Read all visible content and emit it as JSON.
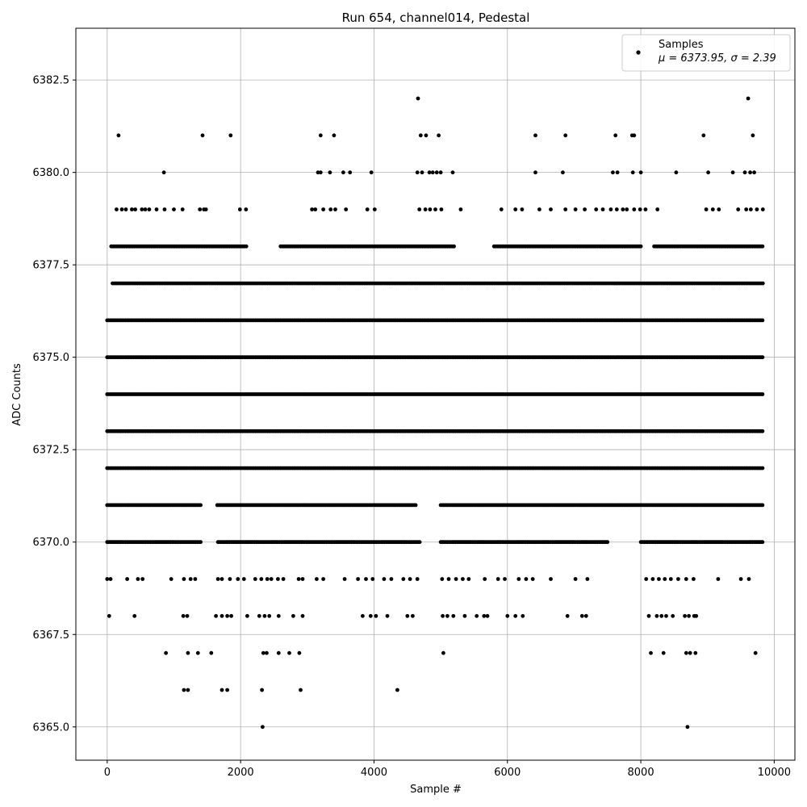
{
  "chart_data": {
    "type": "scatter",
    "title": "Run 654, channel014, Pedestal",
    "xlabel": "Sample #",
    "ylabel": "ADC Counts",
    "xlim": [
      -470,
      10310
    ],
    "ylim": [
      6364.1,
      6383.9
    ],
    "x_ticks": [
      0,
      2000,
      4000,
      6000,
      8000,
      10000
    ],
    "x_tick_labels": [
      "0",
      "2000",
      "4000",
      "6000",
      "8000",
      "10000"
    ],
    "y_ticks": [
      6365.0,
      6367.5,
      6370.0,
      6372.5,
      6375.0,
      6377.5,
      6380.0,
      6382.5
    ],
    "y_tick_labels": [
      "6365.0",
      "6367.5",
      "6370.0",
      "6372.5",
      "6375.0",
      "6377.5",
      "6380.0",
      "6382.5"
    ],
    "grid": true,
    "legend_position": "top-right",
    "series": [
      {
        "name": "Samples",
        "stats_label": "μ = 6373.95, σ = 2.39",
        "color": "#000000",
        "n_samples": 9850,
        "level_ranges": {
          "6373": [
            [
              0,
              9840
            ]
          ],
          "6374": [
            [
              0,
              9840
            ]
          ],
          "6375": [
            [
              0,
              9840
            ]
          ],
          "6376": [
            [
              0,
              9840
            ]
          ],
          "6372": [
            [
              0,
              9840
            ]
          ],
          "6377": [
            [
              80,
              9840
            ]
          ],
          "6371": [
            [
              0,
              1420
            ],
            [
              1650,
              4640
            ],
            [
              5000,
              9840
            ]
          ],
          "6370": [
            [
              0,
              1420
            ],
            [
              1660,
              4700
            ],
            [
              5000,
              7500
            ],
            [
              8000,
              9840
            ]
          ],
          "6378": [
            [
              60,
              2100
            ],
            [
              2600,
              5200
            ],
            [
              5800,
              8000
            ],
            [
              8200,
              9840
            ]
          ]
        },
        "points": [
          [
            170,
            6381
          ],
          [
            1430,
            6381
          ],
          [
            1850,
            6381
          ],
          [
            3200,
            6381
          ],
          [
            3400,
            6381
          ],
          [
            4700,
            6381
          ],
          [
            4780,
            6381
          ],
          [
            4970,
            6381
          ],
          [
            6420,
            6381
          ],
          [
            6870,
            6381
          ],
          [
            7620,
            6381
          ],
          [
            7870,
            6381
          ],
          [
            7900,
            6381
          ],
          [
            8940,
            6381
          ],
          [
            9680,
            6381
          ],
          [
            4660,
            6382
          ],
          [
            9610,
            6382
          ],
          [
            850,
            6380
          ],
          [
            3160,
            6380
          ],
          [
            3200,
            6380
          ],
          [
            3340,
            6380
          ],
          [
            3540,
            6380
          ],
          [
            3640,
            6380
          ],
          [
            3960,
            6380
          ],
          [
            4650,
            6380
          ],
          [
            4720,
            6380
          ],
          [
            4830,
            6380
          ],
          [
            4880,
            6380
          ],
          [
            4940,
            6380
          ],
          [
            5000,
            6380
          ],
          [
            5180,
            6380
          ],
          [
            6420,
            6380
          ],
          [
            6830,
            6380
          ],
          [
            7580,
            6380
          ],
          [
            7650,
            6380
          ],
          [
            7880,
            6380
          ],
          [
            8000,
            6380
          ],
          [
            8530,
            6380
          ],
          [
            9010,
            6380
          ],
          [
            9380,
            6380
          ],
          [
            9560,
            6380
          ],
          [
            9640,
            6380
          ],
          [
            9700,
            6380
          ],
          [
            140,
            6379
          ],
          [
            220,
            6379
          ],
          [
            280,
            6379
          ],
          [
            370,
            6379
          ],
          [
            420,
            6379
          ],
          [
            520,
            6379
          ],
          [
            570,
            6379
          ],
          [
            630,
            6379
          ],
          [
            740,
            6379
          ],
          [
            860,
            6379
          ],
          [
            1000,
            6379
          ],
          [
            1130,
            6379
          ],
          [
            1390,
            6379
          ],
          [
            1450,
            6379
          ],
          [
            1480,
            6379
          ],
          [
            1990,
            6379
          ],
          [
            2080,
            6379
          ],
          [
            3070,
            6379
          ],
          [
            3120,
            6379
          ],
          [
            3240,
            6379
          ],
          [
            3350,
            6379
          ],
          [
            3420,
            6379
          ],
          [
            3580,
            6379
          ],
          [
            3900,
            6379
          ],
          [
            4010,
            6379
          ],
          [
            4680,
            6379
          ],
          [
            4770,
            6379
          ],
          [
            4840,
            6379
          ],
          [
            4920,
            6379
          ],
          [
            5010,
            6379
          ],
          [
            5300,
            6379
          ],
          [
            5910,
            6379
          ],
          [
            6120,
            6379
          ],
          [
            6220,
            6379
          ],
          [
            6480,
            6379
          ],
          [
            6650,
            6379
          ],
          [
            6870,
            6379
          ],
          [
            7020,
            6379
          ],
          [
            7160,
            6379
          ],
          [
            7330,
            6379
          ],
          [
            7430,
            6379
          ],
          [
            7550,
            6379
          ],
          [
            7640,
            6379
          ],
          [
            7730,
            6379
          ],
          [
            7790,
            6379
          ],
          [
            7900,
            6379
          ],
          [
            7990,
            6379
          ],
          [
            8070,
            6379
          ],
          [
            8250,
            6379
          ],
          [
            8980,
            6379
          ],
          [
            9080,
            6379
          ],
          [
            9170,
            6379
          ],
          [
            9460,
            6379
          ],
          [
            9580,
            6379
          ],
          [
            9650,
            6379
          ],
          [
            9740,
            6379
          ],
          [
            9830,
            6379
          ],
          [
            0,
            6369
          ],
          [
            50,
            6369
          ],
          [
            300,
            6369
          ],
          [
            460,
            6369
          ],
          [
            530,
            6369
          ],
          [
            960,
            6369
          ],
          [
            1150,
            6369
          ],
          [
            1250,
            6369
          ],
          [
            1320,
            6369
          ],
          [
            1660,
            6369
          ],
          [
            1720,
            6369
          ],
          [
            1840,
            6369
          ],
          [
            1960,
            6369
          ],
          [
            2050,
            6369
          ],
          [
            2220,
            6369
          ],
          [
            2310,
            6369
          ],
          [
            2400,
            6369
          ],
          [
            2460,
            6369
          ],
          [
            2560,
            6369
          ],
          [
            2640,
            6369
          ],
          [
            2870,
            6369
          ],
          [
            2930,
            6369
          ],
          [
            3140,
            6369
          ],
          [
            3240,
            6369
          ],
          [
            3560,
            6369
          ],
          [
            3760,
            6369
          ],
          [
            3880,
            6369
          ],
          [
            3980,
            6369
          ],
          [
            4150,
            6369
          ],
          [
            4260,
            6369
          ],
          [
            4440,
            6369
          ],
          [
            4540,
            6369
          ],
          [
            4650,
            6369
          ],
          [
            5020,
            6369
          ],
          [
            5120,
            6369
          ],
          [
            5230,
            6369
          ],
          [
            5330,
            6369
          ],
          [
            5420,
            6369
          ],
          [
            5660,
            6369
          ],
          [
            5860,
            6369
          ],
          [
            5960,
            6369
          ],
          [
            6170,
            6369
          ],
          [
            6280,
            6369
          ],
          [
            6380,
            6369
          ],
          [
            6650,
            6369
          ],
          [
            7020,
            6369
          ],
          [
            7200,
            6369
          ],
          [
            8080,
            6369
          ],
          [
            8180,
            6369
          ],
          [
            8270,
            6369
          ],
          [
            8360,
            6369
          ],
          [
            8450,
            6369
          ],
          [
            8560,
            6369
          ],
          [
            8680,
            6369
          ],
          [
            8790,
            6369
          ],
          [
            9160,
            6369
          ],
          [
            9500,
            6369
          ],
          [
            9620,
            6369
          ],
          [
            30,
            6368
          ],
          [
            410,
            6368
          ],
          [
            1140,
            6368
          ],
          [
            1200,
            6368
          ],
          [
            1630,
            6368
          ],
          [
            1720,
            6368
          ],
          [
            1800,
            6368
          ],
          [
            1860,
            6368
          ],
          [
            2100,
            6368
          ],
          [
            2280,
            6368
          ],
          [
            2360,
            6368
          ],
          [
            2430,
            6368
          ],
          [
            2570,
            6368
          ],
          [
            2790,
            6368
          ],
          [
            2930,
            6368
          ],
          [
            3830,
            6368
          ],
          [
            3950,
            6368
          ],
          [
            4030,
            6368
          ],
          [
            4200,
            6368
          ],
          [
            4500,
            6368
          ],
          [
            4580,
            6368
          ],
          [
            5030,
            6368
          ],
          [
            5100,
            6368
          ],
          [
            5190,
            6368
          ],
          [
            5360,
            6368
          ],
          [
            5540,
            6368
          ],
          [
            5650,
            6368
          ],
          [
            5700,
            6368
          ],
          [
            6000,
            6368
          ],
          [
            6120,
            6368
          ],
          [
            6230,
            6368
          ],
          [
            6900,
            6368
          ],
          [
            7120,
            6368
          ],
          [
            7180,
            6368
          ],
          [
            8120,
            6368
          ],
          [
            8240,
            6368
          ],
          [
            8310,
            6368
          ],
          [
            8380,
            6368
          ],
          [
            8480,
            6368
          ],
          [
            8660,
            6368
          ],
          [
            8720,
            6368
          ],
          [
            8800,
            6368
          ],
          [
            8830,
            6368
          ],
          [
            880,
            6367
          ],
          [
            1210,
            6367
          ],
          [
            1360,
            6367
          ],
          [
            1560,
            6367
          ],
          [
            2340,
            6367
          ],
          [
            2390,
            6367
          ],
          [
            2570,
            6367
          ],
          [
            2730,
            6367
          ],
          [
            2880,
            6367
          ],
          [
            5040,
            6367
          ],
          [
            8150,
            6367
          ],
          [
            8340,
            6367
          ],
          [
            8680,
            6367
          ],
          [
            8740,
            6367
          ],
          [
            8820,
            6367
          ],
          [
            9720,
            6367
          ],
          [
            1150,
            6366
          ],
          [
            1210,
            6366
          ],
          [
            1720,
            6366
          ],
          [
            1800,
            6366
          ],
          [
            2320,
            6366
          ],
          [
            2900,
            6366
          ],
          [
            4350,
            6366
          ],
          [
            2330,
            6365
          ],
          [
            8700,
            6365
          ]
        ]
      }
    ]
  }
}
